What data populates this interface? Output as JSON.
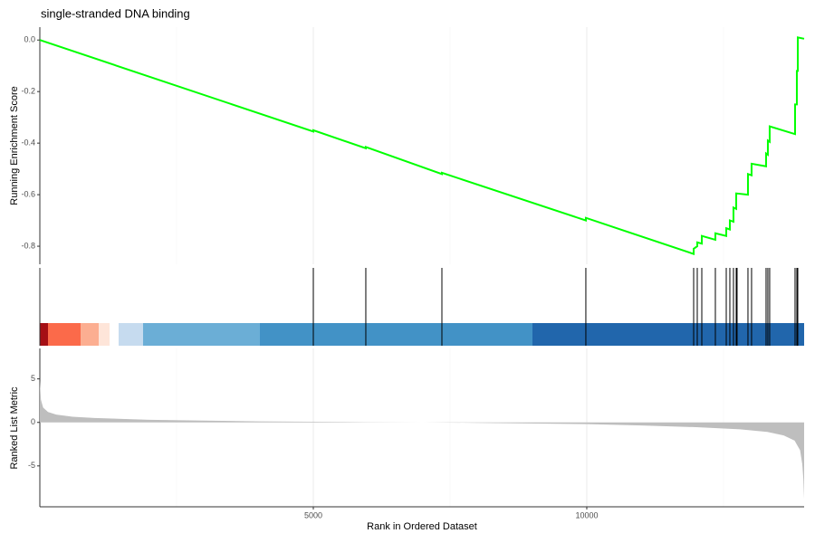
{
  "chart_data": [
    {
      "type": "line",
      "title": "single-stranded DNA binding",
      "ylabel": "Running Enrichment Score",
      "color": "#00ff00",
      "xlim": [
        0,
        13974
      ],
      "ylim": [
        -0.87,
        0.05
      ],
      "yticks": [
        {
          "value": 0,
          "label": "0.0"
        },
        -0.2,
        -0.4,
        -0.6,
        -0.8
      ],
      "x": [
        0,
        5000,
        5000,
        5960,
        5960,
        7351,
        7351,
        9983,
        9983,
        11954,
        11954,
        12020,
        12020,
        12103,
        12103,
        12351,
        12351,
        12550,
        12550,
        12616,
        12616,
        12682,
        12682,
        12732,
        12732,
        12947,
        12947,
        13013,
        13013,
        13278,
        13278,
        13311,
        13311,
        13344,
        13344,
        13808,
        13808,
        13841,
        13841,
        13858,
        13858,
        13974
      ],
      "values": [
        0,
        -0.355,
        -0.35,
        -0.42,
        -0.415,
        -0.52,
        -0.515,
        -0.7,
        -0.69,
        -0.83,
        -0.81,
        -0.8,
        -0.785,
        -0.79,
        -0.76,
        -0.775,
        -0.75,
        -0.76,
        -0.73,
        -0.735,
        -0.7,
        -0.705,
        -0.65,
        -0.655,
        -0.595,
        -0.6,
        -0.52,
        -0.525,
        -0.48,
        -0.49,
        -0.44,
        -0.445,
        -0.39,
        -0.395,
        -0.335,
        -0.365,
        -0.25,
        -0.25,
        -0.12,
        -0.12,
        0.01,
        0.005
      ],
      "xgrid": [
        2500,
        5000,
        7500,
        10000,
        12500
      ]
    },
    {
      "type": "rug",
      "color": "#000000",
      "xlim": [
        0,
        13974
      ],
      "x": [
        5000,
        5960,
        7351,
        9983,
        11954,
        12020,
        12103,
        12351,
        12550,
        12616,
        12682,
        12732,
        12748,
        12947,
        13013,
        13278,
        13311,
        13344,
        13808,
        13841,
        13858
      ]
    },
    {
      "type": "area",
      "ylabel": "Ranked List Metric",
      "xlabel": "Rank in Ordered Dataset",
      "color": "#bebebe",
      "xlim": [
        0,
        13974
      ],
      "ylim": [
        -9.7,
        8.5
      ],
      "yticks": [
        -5,
        0,
        5
      ],
      "xticks": [
        5000,
        10000
      ],
      "xgrid": [
        2500,
        5000,
        7500,
        10000,
        12500
      ],
      "x": [
        0,
        20,
        60,
        150,
        300,
        600,
        1000,
        2000,
        3000,
        4000,
        6000,
        7000,
        8000,
        10000,
        11000,
        12000,
        12800,
        13300,
        13600,
        13800,
        13900,
        13940,
        13960,
        13974
      ],
      "values": [
        4.8,
        2.6,
        1.7,
        1.2,
        0.9,
        0.65,
        0.5,
        0.3,
        0.2,
        0.12,
        0.03,
        0,
        -0.05,
        -0.2,
        -0.35,
        -0.55,
        -0.8,
        -1.1,
        -1.5,
        -2.1,
        -3.2,
        -4.8,
        -6.5,
        -8.8
      ]
    }
  ]
}
